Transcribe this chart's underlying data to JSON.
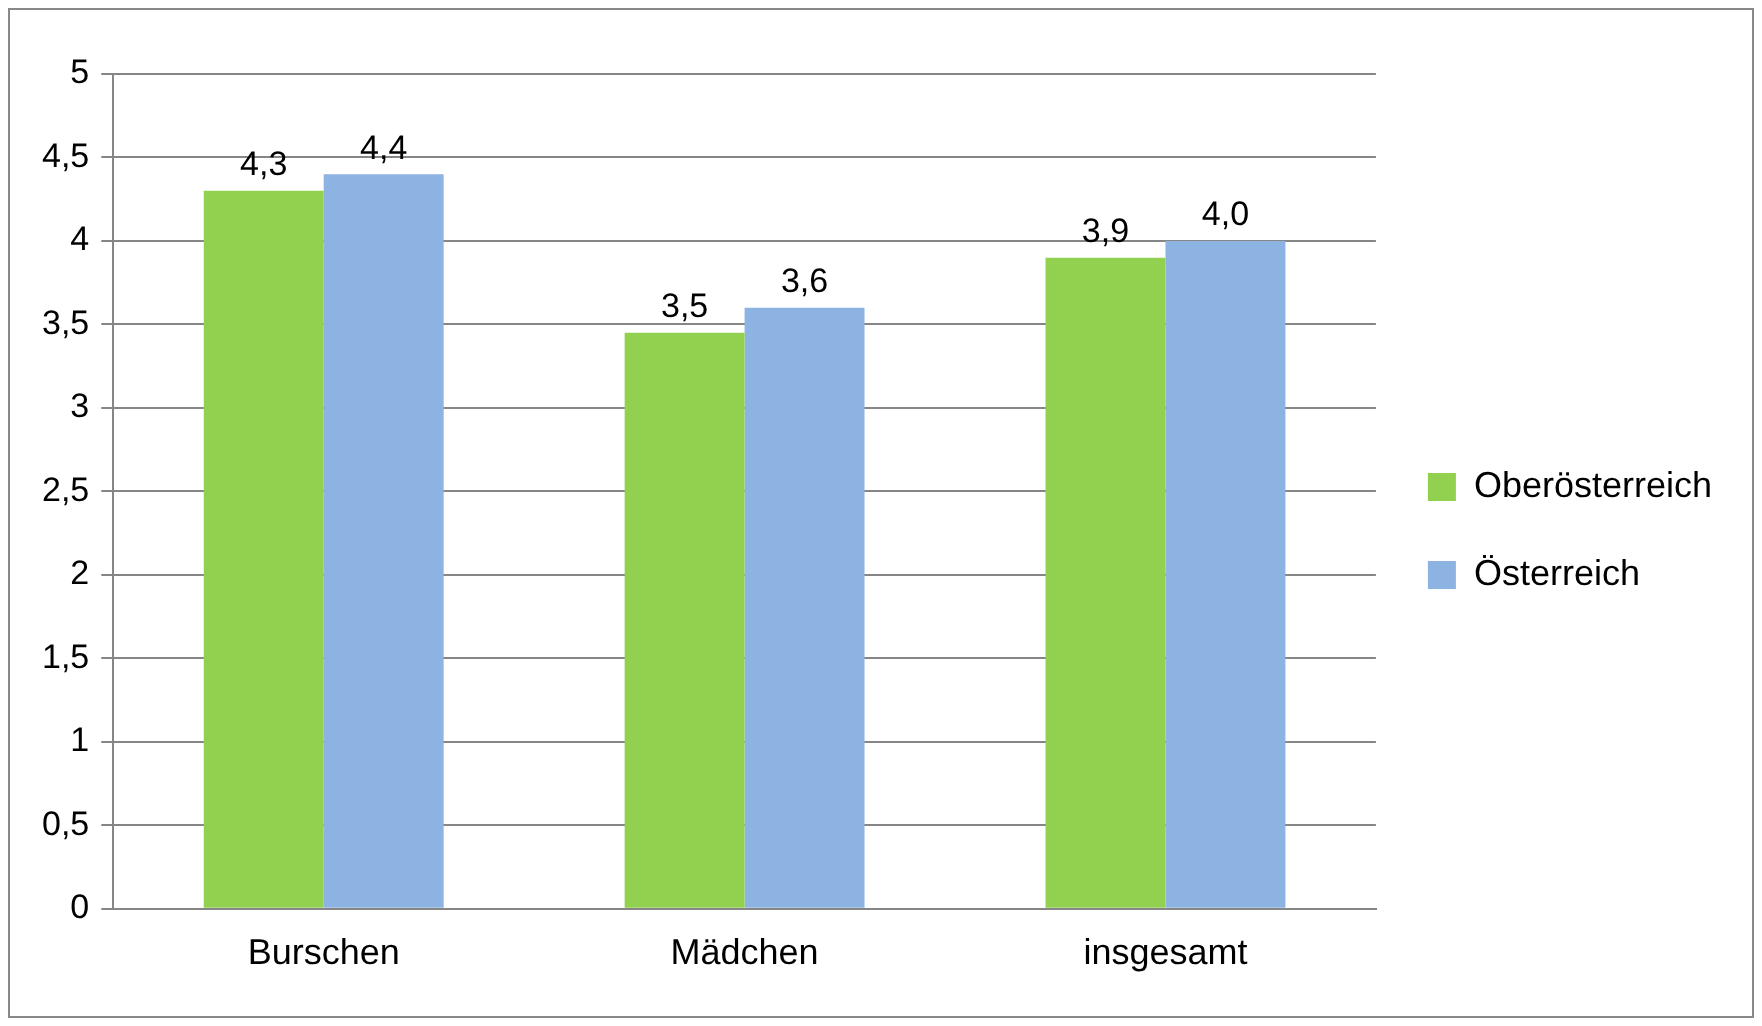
{
  "chart_data": {
    "type": "bar",
    "categories": [
      "Burschen",
      "Mädchen",
      "insgesamt"
    ],
    "series": [
      {
        "name": "Oberösterreich",
        "color": "#92d050",
        "values": [
          4.3,
          3.45,
          3.9
        ],
        "value_labels": [
          "4,3",
          "3,5",
          "3,9"
        ]
      },
      {
        "name": "Österreich",
        "color": "#8db3e2",
        "values": [
          4.4,
          3.6,
          4.0
        ],
        "value_labels": [
          "4,4",
          "3,6",
          "4,0"
        ]
      }
    ],
    "ylim": [
      0,
      5
    ],
    "yticks": [
      0,
      {
        "value": 0.5,
        "label": "0,5"
      },
      1,
      {
        "value": 1.5,
        "label": "1,5"
      },
      2,
      {
        "value": 2.5,
        "label": "2,5"
      },
      3,
      {
        "value": 3.5,
        "label": "3,5"
      },
      4,
      {
        "value": 4.5,
        "label": "4,5"
      },
      5
    ],
    "grid": "y",
    "legend": "right"
  }
}
